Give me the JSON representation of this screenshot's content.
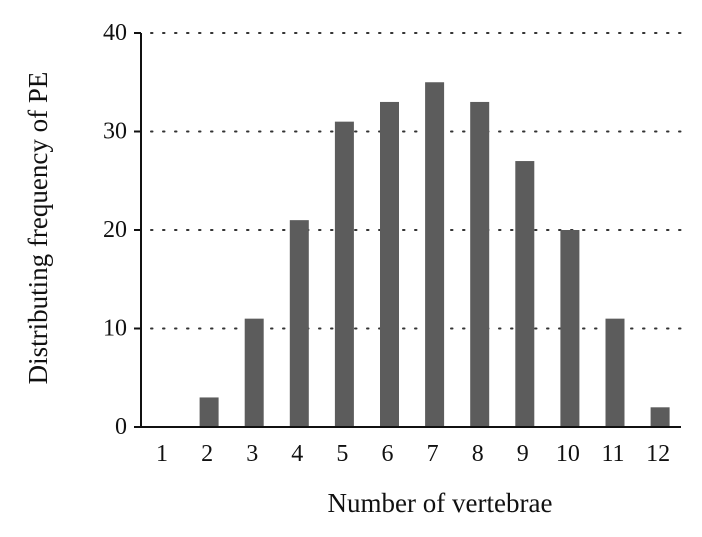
{
  "chart_data": {
    "type": "bar",
    "title": "",
    "xlabel": "Number of vertebrae",
    "ylabel": "Distributing frequency of PE",
    "categories": [
      "1",
      "2",
      "3",
      "4",
      "5",
      "6",
      "7",
      "8",
      "9",
      "10",
      "11",
      "12"
    ],
    "values": [
      0,
      3,
      11,
      21,
      31,
      33,
      35,
      33,
      27,
      20,
      11,
      2
    ],
    "ylim": [
      0,
      40
    ],
    "yticks": [
      "0",
      "10",
      "20",
      "30",
      "40"
    ],
    "grid": "dotted horizontal",
    "legend": "none",
    "bar_color": "#5c5c5c"
  }
}
